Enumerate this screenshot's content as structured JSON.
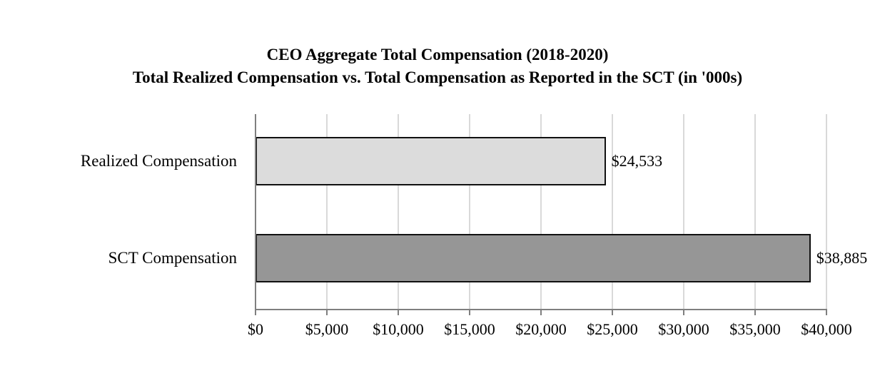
{
  "chart_data": {
    "type": "bar",
    "orientation": "horizontal",
    "title": "CEO Aggregate Total Compensation (2018-2020)",
    "subtitle": "Total Realized Compensation vs. Total Compensation as Reported in the SCT (in '000s)",
    "categories": [
      "Realized Compensation",
      "SCT Compensation"
    ],
    "values": [
      24533,
      38885
    ],
    "value_labels": [
      "$24,533",
      "$38,885"
    ],
    "bar_colors": [
      "#dcdcdc",
      "#969696"
    ],
    "bar_border_color": "#111111",
    "xlim": [
      0,
      40000
    ],
    "x_tick_interval": 5000,
    "x_tick_labels": [
      "$0",
      "$5,000",
      "$10,000",
      "$15,000",
      "$20,000",
      "$25,000",
      "$30,000",
      "$35,000",
      "$40,000"
    ],
    "grid": true,
    "gridline_color": "#d9d9d9",
    "axis_color": "#7f7f7f",
    "text_color": "#000000",
    "legend": "none"
  }
}
